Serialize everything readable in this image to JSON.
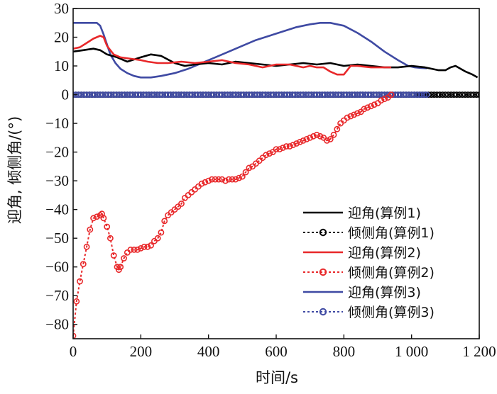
{
  "chart_data": {
    "type": "line",
    "title": "",
    "xlabel": "时间/s",
    "ylabel": "迎角, 倾侧角/(°)",
    "xlim": [
      0,
      1200
    ],
    "ylim": [
      -85,
      30
    ],
    "xticks": [
      0,
      200,
      400,
      600,
      800,
      1000,
      1200
    ],
    "xtick_labels": [
      "0",
      "200",
      "400",
      "600",
      "800",
      "1 000",
      "1 200"
    ],
    "yticks": [
      30,
      20,
      10,
      0,
      -10,
      -20,
      -30,
      -40,
      -50,
      -60,
      -70,
      -80
    ],
    "ytick_labels": [
      "30",
      "20",
      "10",
      "0",
      "−10",
      "−20",
      "−30",
      "−40",
      "−50",
      "−60",
      "−70",
      "−80"
    ],
    "legend_position": "lower-right",
    "series": [
      {
        "name": "迎角(算例1)",
        "color": "#000000",
        "style": "solid",
        "marker": "none",
        "x": [
          0,
          30,
          60,
          80,
          100,
          130,
          160,
          200,
          230,
          260,
          300,
          330,
          360,
          400,
          440,
          480,
          520,
          560,
          600,
          640,
          680,
          720,
          760,
          800,
          840,
          880,
          920,
          960,
          1000,
          1040,
          1060,
          1080,
          1100,
          1115,
          1130,
          1145,
          1160,
          1180,
          1195
        ],
        "y": [
          15,
          15.5,
          16,
          15.5,
          14,
          13,
          11.5,
          13,
          14,
          13.5,
          11,
          10,
          10.5,
          11,
          10.5,
          11.5,
          11,
          10.5,
          10,
          10.5,
          11,
          10.5,
          11,
          10,
          10.5,
          10,
          9.5,
          9.5,
          10,
          9.5,
          9,
          8.5,
          8.5,
          9.5,
          10,
          9,
          8,
          7,
          6
        ]
      },
      {
        "name": "倾侧角(算例1)",
        "color": "#000000",
        "style": "dotted",
        "marker": "circle",
        "x": [
          0,
          200,
          400,
          600,
          800,
          1000,
          1050,
          1100,
          1150,
          1200
        ],
        "y": [
          0,
          0,
          0,
          0,
          0,
          0,
          0,
          0,
          0,
          0
        ]
      },
      {
        "name": "迎角(算例2)",
        "color": "#e8282a",
        "style": "solid",
        "marker": "none",
        "x": [
          0,
          20,
          40,
          60,
          80,
          90,
          100,
          110,
          120,
          140,
          170,
          200,
          220,
          250,
          280,
          320,
          360,
          400,
          440,
          480,
          520,
          560,
          600,
          640,
          680,
          700,
          720,
          740,
          760,
          780,
          800,
          820,
          840,
          880,
          920,
          940
        ],
        "y": [
          16,
          16.5,
          18,
          19.5,
          20.5,
          20,
          17,
          15.5,
          14,
          13,
          12.5,
          12,
          11.5,
          11,
          11,
          11.5,
          11,
          11.5,
          12,
          11,
          10.5,
          9.5,
          10.5,
          10.5,
          9.5,
          10,
          9.5,
          9.5,
          8,
          7,
          7,
          10,
          10,
          9.5,
          9.5,
          9.5
        ]
      },
      {
        "name": "倾侧角(算例2)",
        "color": "#e8282a",
        "style": "dotted",
        "marker": "circle",
        "x": [
          0,
          10,
          20,
          30,
          40,
          50,
          60,
          70,
          80,
          85,
          90,
          100,
          110,
          120,
          130,
          135,
          140,
          150,
          160,
          170,
          180,
          190,
          200,
          210,
          220,
          230,
          240,
          250,
          260,
          270,
          280,
          290,
          300,
          310,
          320,
          330,
          340,
          350,
          360,
          370,
          380,
          390,
          400,
          410,
          420,
          430,
          440,
          450,
          460,
          470,
          480,
          490,
          500,
          510,
          520,
          530,
          540,
          550,
          560,
          570,
          580,
          590,
          600,
          610,
          620,
          630,
          640,
          650,
          660,
          670,
          680,
          690,
          700,
          710,
          720,
          730,
          740,
          750,
          760,
          770,
          780,
          790,
          800,
          810,
          820,
          830,
          840,
          850,
          860,
          870,
          880,
          890,
          900,
          910,
          920,
          930,
          940
        ],
        "y": [
          -84,
          -72,
          -65,
          -59,
          -53,
          -47,
          -43,
          -42.5,
          -42,
          -41.5,
          -43,
          -46,
          -50,
          -56,
          -60,
          -61,
          -60,
          -57,
          -55,
          -54,
          -54,
          -54,
          -53.5,
          -53,
          -53,
          -52.5,
          -51,
          -50,
          -48,
          -44,
          -42,
          -41,
          -40,
          -39,
          -38,
          -36,
          -35,
          -34,
          -33,
          -32,
          -31,
          -30.5,
          -30,
          -29.5,
          -29.5,
          -29.5,
          -29.5,
          -30,
          -29.5,
          -29.5,
          -29.5,
          -29,
          -28.5,
          -27,
          -25.5,
          -25,
          -24,
          -23,
          -22,
          -21,
          -20.5,
          -20,
          -19,
          -19,
          -18.5,
          -18,
          -18,
          -17.5,
          -17,
          -16.5,
          -16,
          -15.5,
          -15,
          -14.5,
          -14,
          -14.5,
          -15,
          -16,
          -15.5,
          -14,
          -12,
          -10,
          -9,
          -8,
          -7.5,
          -7,
          -6.5,
          -6,
          -5,
          -4.5,
          -4,
          -3.5,
          -3,
          -2,
          -1.5,
          -1,
          0
        ]
      },
      {
        "name": "迎角(算例3)",
        "color": "#3f4aa3",
        "style": "solid",
        "marker": "none",
        "x": [
          0,
          50,
          70,
          80,
          90,
          100,
          110,
          125,
          140,
          160,
          180,
          200,
          230,
          260,
          300,
          340,
          380,
          420,
          460,
          500,
          540,
          580,
          620,
          660,
          700,
          730,
          760,
          800,
          840,
          880,
          920,
          960,
          990,
          1010,
          1030,
          1045
        ],
        "y": [
          25,
          25,
          25,
          24,
          21,
          17.5,
          14,
          11,
          9,
          7.5,
          6.5,
          6,
          6,
          6.5,
          7.5,
          9,
          11,
          13,
          15,
          17,
          19,
          20.5,
          22,
          23.5,
          24.5,
          25,
          25,
          24,
          21.5,
          18.5,
          15,
          12,
          10,
          9.5,
          9.3,
          9.2
        ]
      },
      {
        "name": "倾侧角(算例3)",
        "color": "#3f4aa3",
        "style": "dotted",
        "marker": "circle",
        "x": [
          0,
          200,
          400,
          600,
          800,
          1000,
          1045
        ],
        "y": [
          0,
          0,
          0,
          0,
          0,
          0,
          0
        ]
      }
    ]
  }
}
